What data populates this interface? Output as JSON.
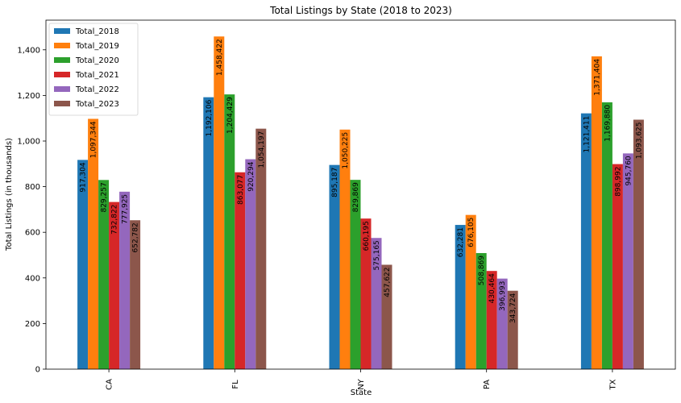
{
  "chart_data": {
    "type": "bar",
    "title": "Total Listings by State (2018 to 2023)",
    "xlabel": "State",
    "ylabel": "Total Listings (in thousands)",
    "categories": [
      "CA",
      "FL",
      "NY",
      "PA",
      "TX"
    ],
    "ylim": [
      0,
      1530
    ],
    "yticks": [
      0,
      200,
      400,
      600,
      800,
      1000,
      1200,
      1400
    ],
    "ytick_labels": [
      "0",
      "200",
      "400",
      "600",
      "800",
      "1,000",
      "1,200",
      "1,400"
    ],
    "grid": false,
    "legend_position": "top-left",
    "series": [
      {
        "name": "Total_2018",
        "color": "#1f77b4",
        "values": [
          917.304,
          1192.106,
          895.187,
          632.281,
          1121.411
        ],
        "labels": [
          "917,304",
          "1,192,106",
          "895,187",
          "632,281",
          "1,121,411"
        ]
      },
      {
        "name": "Total_2019",
        "color": "#ff7f0e",
        "values": [
          1097.344,
          1458.422,
          1050.225,
          676.105,
          1371.404
        ],
        "labels": [
          "1,097,344",
          "1,458,422",
          "1,050,225",
          "676,105",
          "1,371,404"
        ]
      },
      {
        "name": "Total_2020",
        "color": "#2ca02c",
        "values": [
          829.257,
          1204.429,
          829.869,
          508.869,
          1169.88
        ],
        "labels": [
          "829,257",
          "1,204,429",
          "829,869",
          "508,869",
          "1,169,880"
        ]
      },
      {
        "name": "Total_2021",
        "color": "#d62728",
        "values": [
          732.822,
          863.077,
          660.195,
          430.464,
          898.992
        ],
        "labels": [
          "732,822",
          "863,077",
          "660,195",
          "430,464",
          "898,992"
        ]
      },
      {
        "name": "Total_2022",
        "color": "#9467bd",
        "values": [
          777.925,
          920.294,
          575.165,
          396.993,
          945.76
        ],
        "labels": [
          "777,925",
          "920,294",
          "575,165",
          "396,993",
          "945,760"
        ]
      },
      {
        "name": "Total_2023",
        "color": "#8c564b",
        "values": [
          652.782,
          1054.197,
          457.622,
          343.724,
          1093.625
        ],
        "labels": [
          "652,782",
          "1,054,197",
          "457,622",
          "343,724",
          "1,093,625"
        ]
      }
    ]
  }
}
